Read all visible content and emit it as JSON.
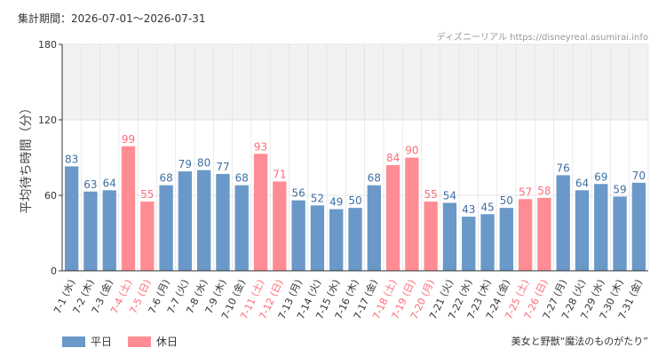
{
  "header": {
    "period": "集計期間：2026-07-01〜2026-07-31",
    "credit": "ディズニーリアル https://disneyreal.asumirai.info"
  },
  "footer": {
    "attribution": "美女と野獣“魔法のものがたり”"
  },
  "legend": {
    "weekday_label": "平日",
    "holiday_label": "休日"
  },
  "colors": {
    "weekday_bar": "#6a98c8",
    "holiday_bar": "#ff8c94",
    "weekday_text": "#3e6fa3",
    "holiday_text": "#ff6b78",
    "grid": "#dddddd",
    "band": "#f2f2f2"
  },
  "chart_data": {
    "type": "bar",
    "ylabel": "平均待ち時間（分）",
    "ylim": [
      0,
      180
    ],
    "yticks": [
      0,
      60,
      120,
      180
    ],
    "shaded_band": [
      120,
      180
    ],
    "grid": true,
    "legend_position": "bottom-left",
    "categories": [
      "7-1 (水)",
      "7-2 (木)",
      "7-3 (金)",
      "7-4 (土)",
      "7-5 (日)",
      "7-6 (月)",
      "7-7 (火)",
      "7-8 (水)",
      "7-9 (木)",
      "7-10 (金)",
      "7-11 (土)",
      "7-12 (日)",
      "7-13 (月)",
      "7-14 (火)",
      "7-15 (水)",
      "7-16 (木)",
      "7-17 (金)",
      "7-18 (土)",
      "7-19 (日)",
      "7-20 (月)",
      "7-21 (火)",
      "7-22 (水)",
      "7-23 (木)",
      "7-24 (金)",
      "7-25 (土)",
      "7-26 (日)",
      "7-27 (月)",
      "7-28 (火)",
      "7-29 (水)",
      "7-30 (木)",
      "7-31 (金)"
    ],
    "values": [
      83,
      63,
      64,
      99,
      55,
      68,
      79,
      80,
      77,
      68,
      93,
      71,
      56,
      52,
      49,
      50,
      68,
      84,
      90,
      55,
      54,
      43,
      45,
      50,
      57,
      58,
      76,
      64,
      69,
      59,
      70
    ],
    "holiday": [
      false,
      false,
      false,
      true,
      true,
      false,
      false,
      false,
      false,
      false,
      true,
      true,
      false,
      false,
      false,
      false,
      false,
      true,
      true,
      true,
      false,
      false,
      false,
      false,
      true,
      true,
      false,
      false,
      false,
      false,
      false
    ],
    "series": [
      {
        "name": "平日"
      },
      {
        "name": "休日"
      }
    ]
  }
}
